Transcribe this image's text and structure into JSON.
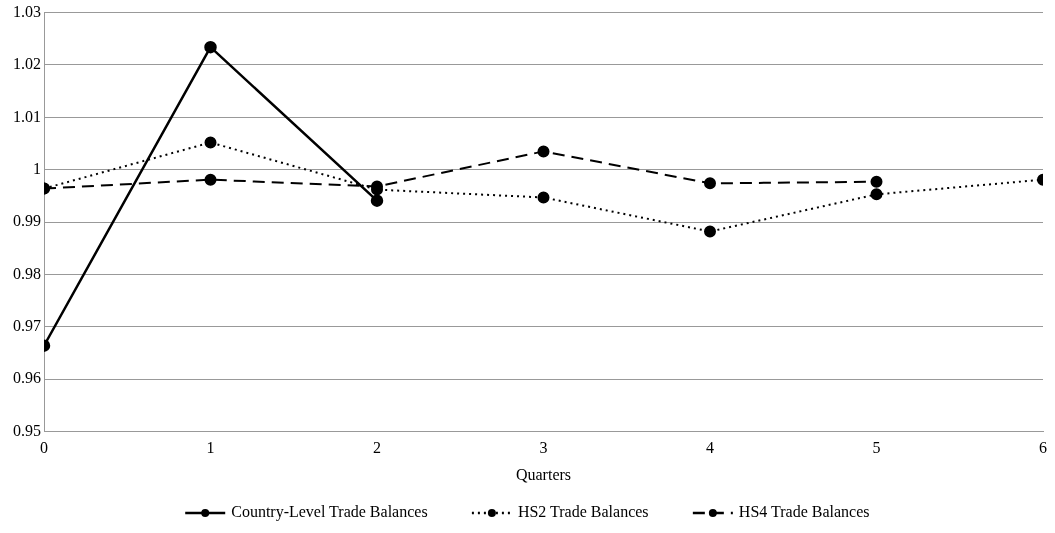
{
  "chart_data": {
    "type": "line",
    "xlabel": "Quarters",
    "x": [
      0,
      1,
      2,
      3,
      4,
      5,
      6
    ],
    "xlim": [
      0,
      6
    ],
    "xticks": [
      0,
      1,
      2,
      3,
      4,
      5,
      6
    ],
    "ylim": [
      0.95,
      1.03
    ],
    "yticks": [
      0.95,
      0.96,
      0.97,
      0.98,
      0.99,
      1,
      1.01,
      1.02,
      1.03
    ],
    "grid": "y",
    "legend": "bottom",
    "series": [
      {
        "name": "Country-Level Trade Balances",
        "color": "#000000",
        "line_style": "solid",
        "marker": "circle",
        "x": [
          0,
          1,
          2
        ],
        "values": [
          0.9664,
          1.0234,
          0.9941
        ]
      },
      {
        "name": "HS2 Trade Balances",
        "color": "#000000",
        "line_style": "dotted",
        "marker": "circle",
        "values": [
          0.9964,
          1.0052,
          0.9962,
          0.9947,
          0.9882,
          0.9953,
          0.9981
        ]
      },
      {
        "name": "HS4 Trade Balances",
        "color": "#000000",
        "line_style": "dashed",
        "marker": "circle",
        "x": [
          0,
          1,
          2,
          3,
          4,
          5
        ],
        "values": [
          0.9964,
          0.9981,
          0.9968,
          1.0035,
          0.9974,
          0.9977
        ]
      }
    ]
  }
}
